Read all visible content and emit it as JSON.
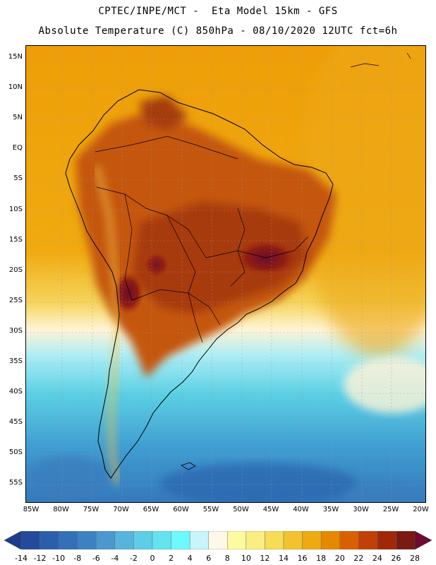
{
  "header": {
    "line1": "CPTEC/INPE/MCT -  Eta Model 15km - GFS",
    "line2": "Absolute Temperature (C) 850hPa - 08/10/2020 12UTC fct=6h"
  },
  "map": {
    "lat_ticks": [
      "15N",
      "10N",
      "5N",
      "EQ",
      "5S",
      "10S",
      "15S",
      "20S",
      "25S",
      "30S",
      "35S",
      "40S",
      "45S",
      "50S",
      "55S"
    ],
    "lon_ticks": [
      "85W",
      "80W",
      "75W",
      "70W",
      "65W",
      "60W",
      "55W",
      "50W",
      "45W",
      "40W",
      "35W",
      "30W",
      "25W",
      "20W"
    ],
    "region": "South America",
    "colors": {
      "hot_core": "#6b0f2a",
      "land_warm": "#b84a0a",
      "ocean_warm": "#f0a000",
      "cool": "#5ad6e8",
      "cold": "#1f5fa8"
    }
  },
  "colorbar": {
    "labels": [
      "-14",
      "-12",
      "-10",
      "-8",
      "-6",
      "-4",
      "-2",
      "0",
      "2",
      "4",
      "6",
      "8",
      "10",
      "12",
      "14",
      "16",
      "18",
      "20",
      "22",
      "24",
      "26",
      "28"
    ],
    "colors": [
      "#1e3c8c",
      "#234b9b",
      "#2b5fad",
      "#3470b8",
      "#3c82c3",
      "#4a98cf",
      "#57b4dc",
      "#5fcde7",
      "#63e4f0",
      "#6cfaff",
      "#c8f4fb",
      "#fff8e8",
      "#fdfaa0",
      "#faee82",
      "#f7dc58",
      "#f2c32e",
      "#eeaa10",
      "#e58900",
      "#d96000",
      "#c04005",
      "#a02808",
      "#7a1a10",
      "#6e0a33"
    ]
  }
}
